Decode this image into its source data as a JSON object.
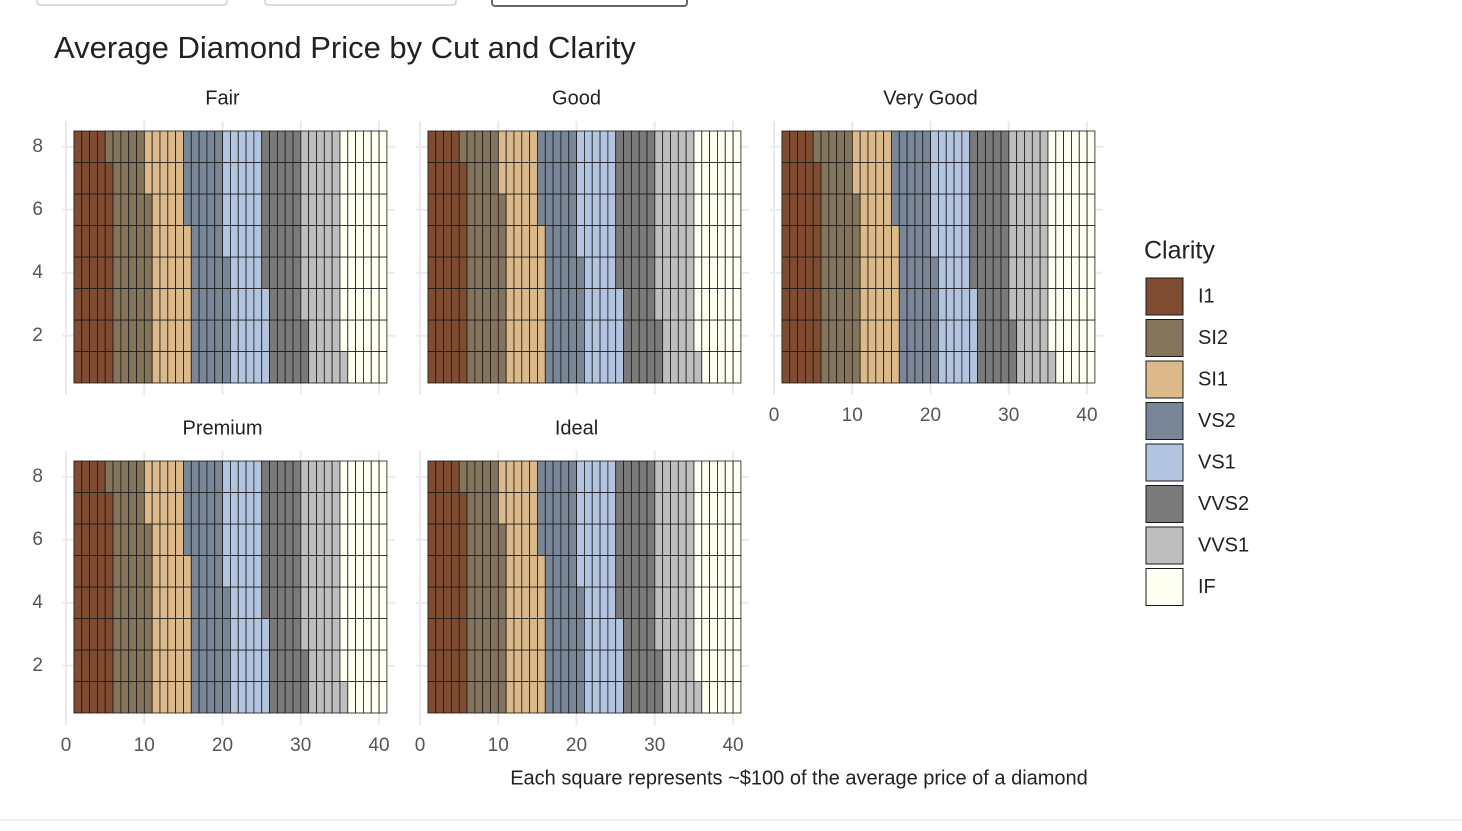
{
  "chart_data": {
    "type": "waffle",
    "title": "Average Diamond Price by Cut and Clarity",
    "caption": "Each square represents ~$100 of the average price of a diamond",
    "legend_title": "Clarity",
    "categories": [
      "I1",
      "SI2",
      "SI1",
      "VS2",
      "VS1",
      "VVS2",
      "VVS1",
      "IF"
    ],
    "colors": [
      "#7f4b31",
      "#85745c",
      "#dbb98a",
      "#788698",
      "#b3c4e1",
      "#7a7a7a",
      "#bebebe",
      "#fffff2"
    ],
    "facets": [
      {
        "name": "Fair",
        "values": [
          39,
          39,
          39,
          39,
          39,
          39,
          39,
          47
        ]
      },
      {
        "name": "Good",
        "values": [
          39,
          39,
          39,
          39,
          39,
          39,
          39,
          47
        ]
      },
      {
        "name": "Very Good",
        "values": [
          39,
          39,
          39,
          39,
          39,
          39,
          39,
          47
        ]
      },
      {
        "name": "Premium",
        "values": [
          39,
          39,
          39,
          39,
          39,
          39,
          39,
          47
        ]
      },
      {
        "name": "Ideal",
        "values": [
          39,
          39,
          39,
          39,
          39,
          39,
          39,
          47
        ]
      }
    ],
    "xlim": [
      0,
      40
    ],
    "xticks": [
      0,
      10,
      20,
      30,
      40
    ],
    "ylim": [
      0.5,
      8.5
    ],
    "yticks": [
      2,
      4,
      6,
      8
    ],
    "grid": true
  }
}
